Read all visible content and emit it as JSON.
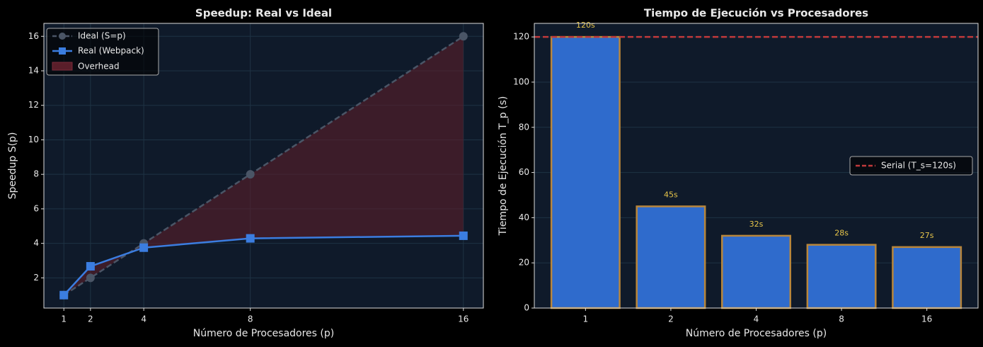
{
  "chart_data": [
    {
      "type": "line",
      "title": "Speedup: Real vs Ideal",
      "xlabel": "Número de Procesadores (p)",
      "ylabel": "Speedup S(p)",
      "x": [
        1,
        2,
        4,
        8,
        16
      ],
      "series": [
        {
          "name": "Ideal (S=p)",
          "color": "#4a5566",
          "marker": "circle",
          "dash": true,
          "values": [
            1,
            2,
            4,
            8,
            16
          ]
        },
        {
          "name": "Real (Webpack)",
          "color": "#3b7de0",
          "marker": "square",
          "dash": false,
          "values": [
            1,
            2.67,
            3.75,
            4.29,
            4.44
          ]
        }
      ],
      "fill_label": "Overhead",
      "fill_color": "#5a1e2a",
      "xlim": [
        0.25,
        16.75
      ],
      "xticks": [
        1,
        2,
        4,
        8,
        16
      ],
      "ylim": [
        0.25,
        16.75
      ],
      "yticks": [
        2,
        4,
        6,
        8,
        10,
        12,
        14,
        16
      ],
      "grid": true,
      "legend": "upper-left"
    },
    {
      "type": "bar",
      "title": "Tiempo de Ejecución vs Procesadores",
      "xlabel": "Número de Procesadores (p)",
      "ylabel": "Tiempo de Ejecución T_p (s)",
      "categories": [
        "1",
        "2",
        "4",
        "8",
        "16"
      ],
      "values": [
        120,
        45,
        32,
        28,
        27
      ],
      "value_labels": [
        "120s",
        "45s",
        "32s",
        "28s",
        "27s"
      ],
      "color": "#2f6bcc",
      "edge_color": "#b8863b",
      "label_color": "#e6c44a",
      "hline": {
        "value": 120,
        "label": "Serial (T_s=120s)",
        "color": "#c0393b"
      },
      "ylim": [
        0,
        126
      ],
      "yticks": [
        0,
        20,
        40,
        60,
        80,
        100,
        120
      ],
      "grid": true,
      "legend": "center-right"
    }
  ]
}
